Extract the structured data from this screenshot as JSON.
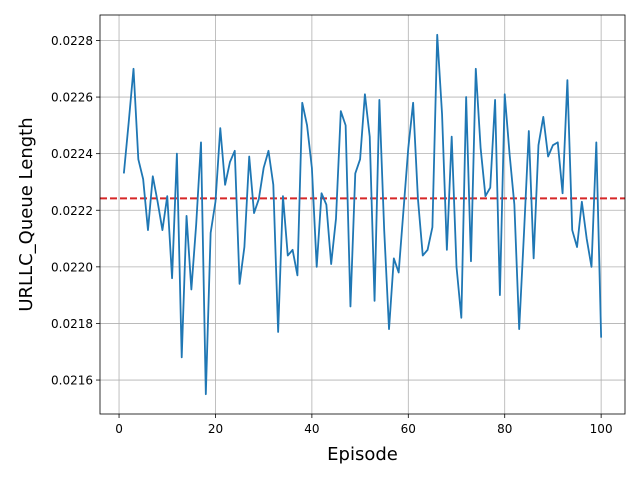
{
  "chart_data": {
    "type": "line",
    "xlabel": "Episode",
    "ylabel": "URLLC_Queue Length",
    "xlim": [
      -3.95,
      104.95
    ],
    "ylim": [
      0.02148,
      0.02289
    ],
    "xticks": [
      0,
      20,
      40,
      60,
      80,
      100
    ],
    "xtick_labels": [
      "0",
      "20",
      "40",
      "60",
      "80",
      "100"
    ],
    "yticks": [
      0.0216,
      0.0218,
      0.022,
      0.0222,
      0.0224,
      0.0226,
      0.0228
    ],
    "ytick_labels": [
      "0.0216",
      "0.0218",
      "0.0220",
      "0.0222",
      "0.0224",
      "0.0226",
      "0.0228"
    ],
    "grid": true,
    "series": [
      {
        "color": "#1f77b4",
        "x": [
          1,
          2,
          3,
          4,
          5,
          6,
          7,
          8,
          9,
          10,
          11,
          12,
          13,
          14,
          15,
          16,
          17,
          18,
          19,
          20,
          21,
          22,
          23,
          24,
          25,
          26,
          27,
          28,
          29,
          30,
          31,
          32,
          33,
          34,
          35,
          36,
          37,
          38,
          39,
          40,
          41,
          42,
          43,
          44,
          45,
          46,
          47,
          48,
          49,
          50,
          51,
          52,
          53,
          54,
          55,
          56,
          57,
          58,
          59,
          60,
          61,
          62,
          63,
          64,
          65,
          66,
          67,
          68,
          69,
          70,
          71,
          72,
          73,
          74,
          75,
          76,
          77,
          78,
          79,
          80,
          81,
          82,
          83,
          84,
          85,
          86,
          87,
          88,
          89,
          90,
          91,
          92,
          93,
          94,
          95,
          96,
          97,
          98,
          99,
          100
        ],
        "y": [
          0.02233,
          0.02251,
          0.0227,
          0.02238,
          0.02231,
          0.02213,
          0.02232,
          0.02223,
          0.02213,
          0.02225,
          0.02196,
          0.0224,
          0.02168,
          0.02218,
          0.02192,
          0.02215,
          0.02244,
          0.02155,
          0.02212,
          0.02223,
          0.02249,
          0.02229,
          0.02237,
          0.02241,
          0.02194,
          0.02207,
          0.02239,
          0.02219,
          0.02224,
          0.02235,
          0.02241,
          0.02229,
          0.02177,
          0.02225,
          0.02204,
          0.02206,
          0.02197,
          0.02258,
          0.0225,
          0.02235,
          0.022,
          0.02226,
          0.02222,
          0.02201,
          0.02217,
          0.02255,
          0.0225,
          0.02186,
          0.02233,
          0.02238,
          0.02261,
          0.02246,
          0.02188,
          0.02259,
          0.02213,
          0.02178,
          0.02203,
          0.02198,
          0.0222,
          0.02242,
          0.02258,
          0.02224,
          0.02204,
          0.02206,
          0.02214,
          0.02282,
          0.02254,
          0.02206,
          0.02246,
          0.022,
          0.02182,
          0.0226,
          0.02202,
          0.0227,
          0.02242,
          0.02225,
          0.02228,
          0.02259,
          0.0219,
          0.02261,
          0.0224,
          0.02222,
          0.02178,
          0.02212,
          0.02248,
          0.02203,
          0.02243,
          0.02253,
          0.02239,
          0.02243,
          0.02244,
          0.02226,
          0.02266,
          0.02213,
          0.02207,
          0.02223,
          0.0221,
          0.022,
          0.02244,
          0.02175
        ]
      }
    ],
    "reference_line": {
      "y": 0.022242,
      "style": "dashed",
      "color": "#d62728"
    }
  }
}
